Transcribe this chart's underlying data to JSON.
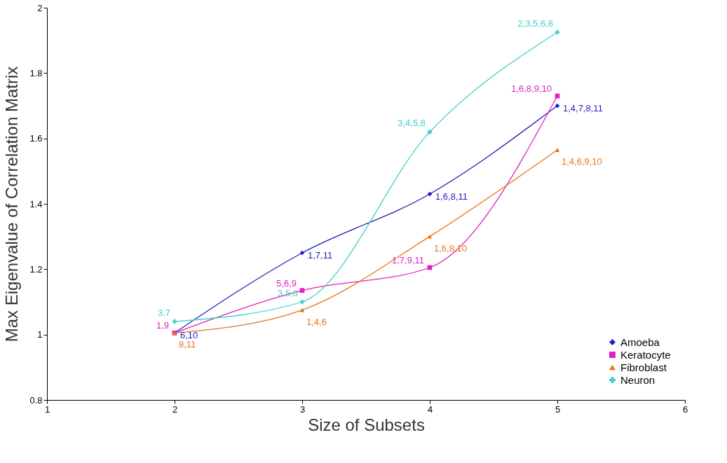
{
  "chart_data": {
    "type": "line",
    "xlabel": "Size of Subsets",
    "ylabel": "Max Eigenvalue of Correlation Matrix",
    "x": [
      2,
      3,
      4,
      5
    ],
    "series": [
      {
        "name": "Amoeba",
        "color": "#1f1fbf",
        "marker": "diamond",
        "values": [
          1.005,
          1.25,
          1.43,
          1.7
        ]
      },
      {
        "name": "Keratocyte",
        "color": "#e020c0",
        "marker": "square",
        "values": [
          1.005,
          1.135,
          1.205,
          1.73
        ]
      },
      {
        "name": "Fibroblast",
        "color": "#e8751a",
        "marker": "triangle",
        "values": [
          1.005,
          1.075,
          1.3,
          1.565
        ]
      },
      {
        "name": "Neuron",
        "color": "#40d0c8",
        "marker": "cross",
        "values": [
          1.04,
          1.1,
          1.62,
          1.925
        ]
      }
    ],
    "annotations": [
      {
        "text": "6,10",
        "x": 2,
        "y": 1.005
      },
      {
        "text": "1,7,11",
        "x": 3,
        "y": 1.25
      },
      {
        "text": "1,6,8,11",
        "x": 4,
        "y": 1.43
      },
      {
        "text": "1,4,7,8,11",
        "x": 5,
        "y": 1.7
      },
      {
        "text": "1,9",
        "x": 2,
        "y": 1.005
      },
      {
        "text": "5,6,9",
        "x": 3,
        "y": 1.135
      },
      {
        "text": "1,7,9,11",
        "x": 4,
        "y": 1.205
      },
      {
        "text": "1,6,8,9,10",
        "x": 5,
        "y": 1.73
      },
      {
        "text": "8,11",
        "x": 2,
        "y": 1.005
      },
      {
        "text": "1,4,6",
        "x": 3,
        "y": 1.075
      },
      {
        "text": "1,6,8,10",
        "x": 4,
        "y": 1.3
      },
      {
        "text": "1,4,6,9,10",
        "x": 5,
        "y": 1.565
      },
      {
        "text": "3,7",
        "x": 2,
        "y": 1.04
      },
      {
        "text": "3,5,6",
        "x": 3,
        "y": 1.1
      },
      {
        "text": "3,4,5,8",
        "x": 4,
        "y": 1.62
      },
      {
        "text": "2,3,5,6,8",
        "x": 5,
        "y": 1.925
      }
    ],
    "xlim": [
      1,
      6
    ],
    "xticks": [
      1,
      2,
      3,
      4,
      5,
      6
    ],
    "ylim": [
      0.8,
      2
    ],
    "yticks": [
      0.8,
      1,
      1.2,
      1.4,
      1.6,
      1.8,
      2
    ],
    "grid": false,
    "legend": "bottom right",
    "line_style": "solid"
  }
}
